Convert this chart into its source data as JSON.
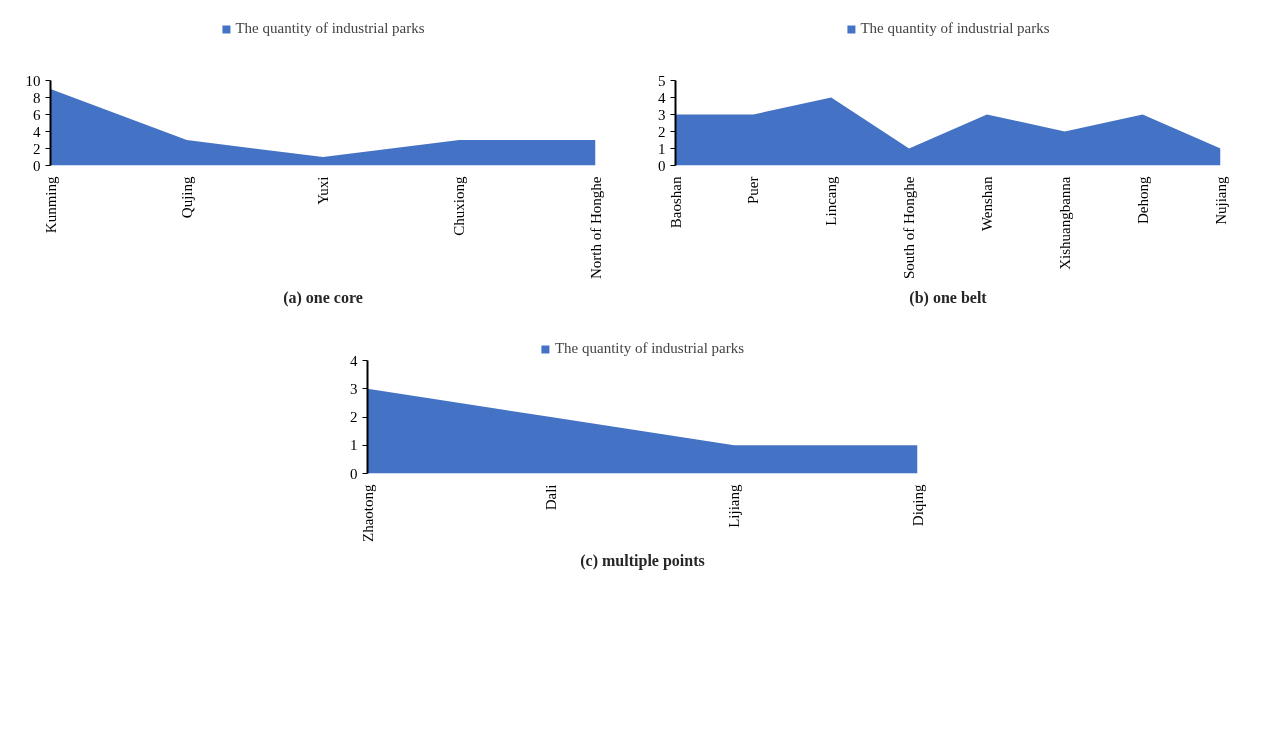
{
  "chart_data": [
    {
      "type": "area",
      "title": "(a) one core",
      "categories": [
        "Kunming",
        "Qujing",
        "Yuxi",
        "Chuxiong",
        "North of Honghe"
      ],
      "series": [
        {
          "name": "The quantity of industrial parks",
          "color": "#4472c4",
          "values": [
            9,
            3,
            1,
            3,
            3
          ]
        }
      ],
      "ylim": [
        0,
        10
      ],
      "yticks": [
        0,
        2,
        4,
        6,
        8,
        10
      ],
      "legend": "top",
      "grid": false
    },
    {
      "type": "area",
      "title": "(b) one belt",
      "categories": [
        "Baoshan",
        "Puer",
        "Lincang",
        "South of Honghe",
        "Wenshan",
        "Xishuangbanna",
        "Dehong",
        "Nujiang"
      ],
      "series": [
        {
          "name": "The quantity of industrial parks",
          "color": "#4472c4",
          "values": [
            3,
            3,
            4,
            1,
            3,
            2,
            3,
            1
          ]
        }
      ],
      "ylim": [
        0,
        5
      ],
      "yticks": [
        0,
        1,
        2,
        3,
        4,
        5
      ],
      "legend": "top",
      "grid": false
    },
    {
      "type": "area",
      "title": "(c) multiple points",
      "categories": [
        "Zhaotong",
        "Dali",
        "Lijiang",
        "Diqing"
      ],
      "series": [
        {
          "name": "The quantity of industrial parks",
          "color": "#4472c4",
          "values": [
            3,
            2,
            1,
            1
          ]
        }
      ],
      "ylim": [
        0,
        4
      ],
      "yticks": [
        0,
        1,
        2,
        3,
        4
      ],
      "legend": "top",
      "grid": false
    }
  ]
}
